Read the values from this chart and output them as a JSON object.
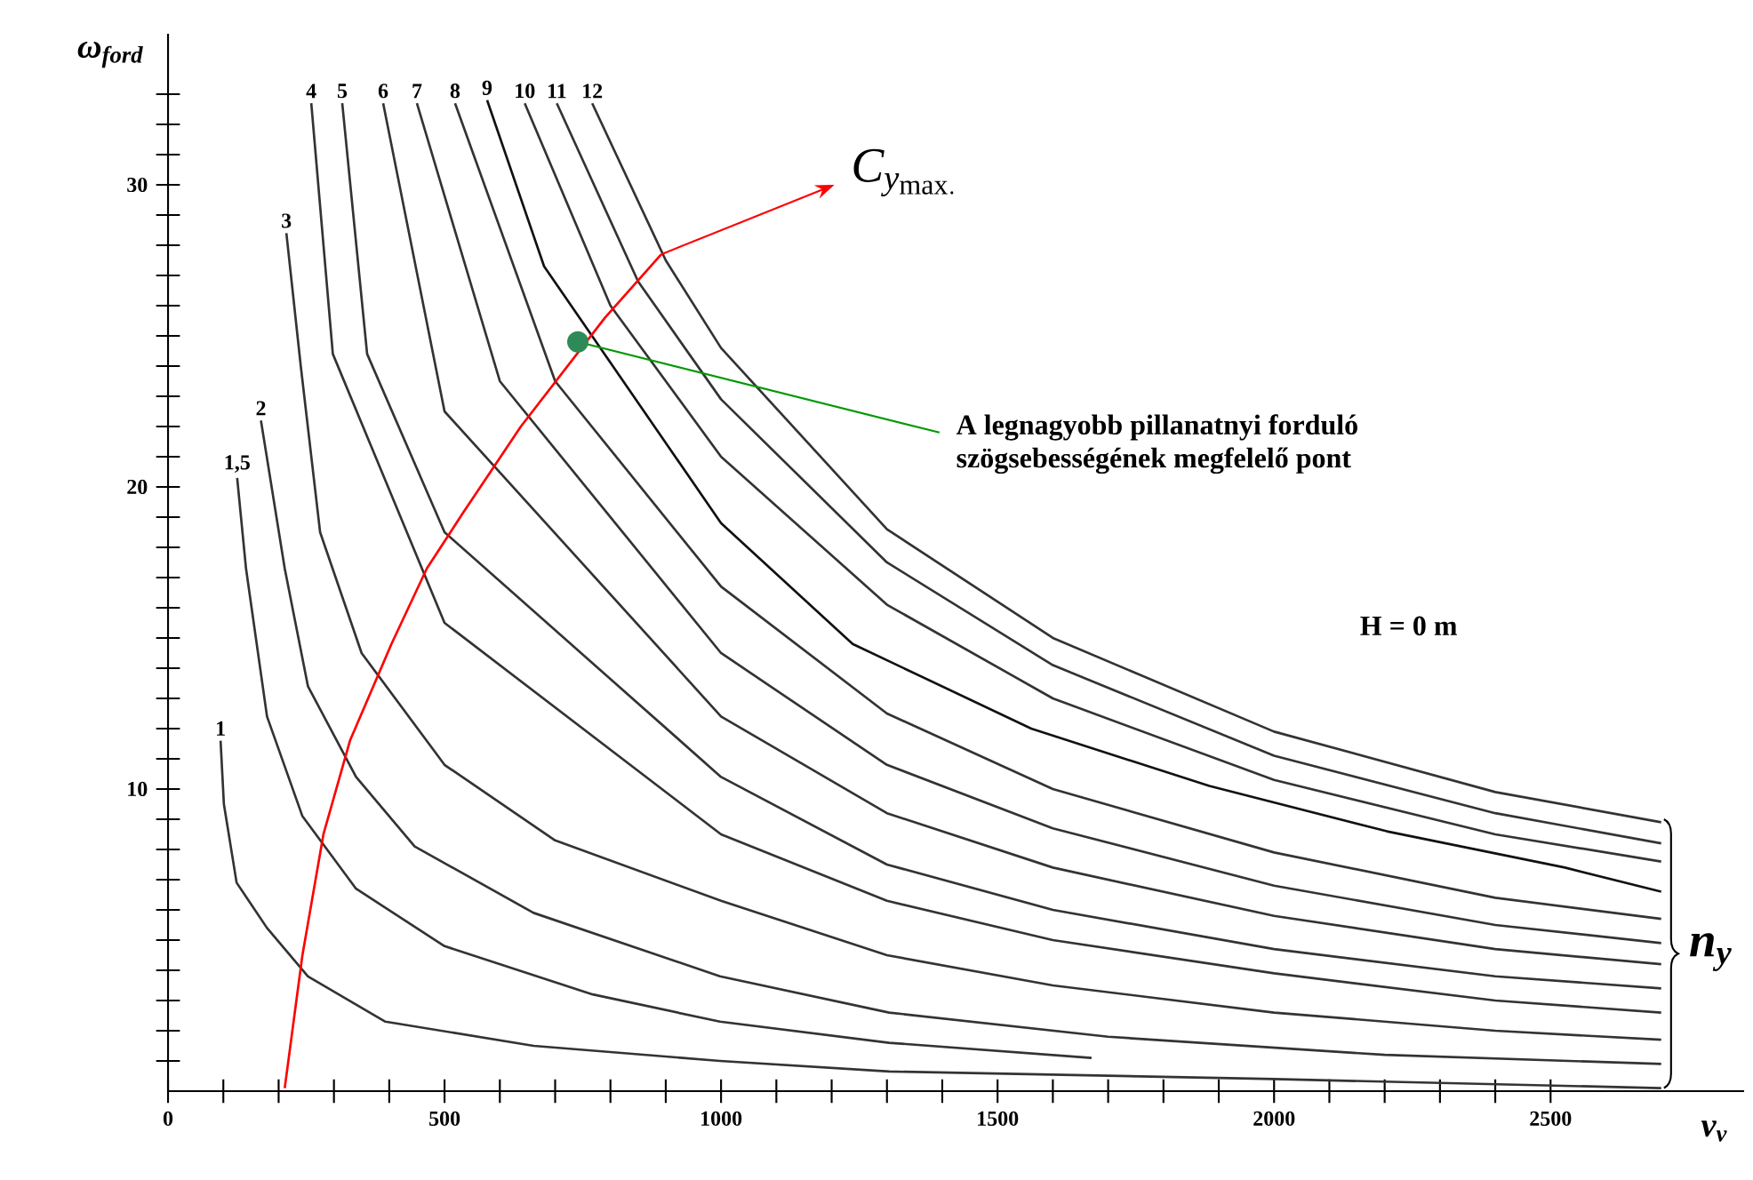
{
  "chart_data": {
    "type": "line",
    "xlabel": "v$_{v}$",
    "ylabel": "ω$_{ford}$",
    "xlim": [
      0,
      2850
    ],
    "ylim": [
      0,
      35
    ],
    "xticks": [
      0,
      {
        "value": 100,
        "label": null
      },
      {
        "value": 200,
        "label": null
      },
      {
        "value": 300,
        "label": null
      },
      {
        "value": 400,
        "label": null
      },
      500,
      {
        "value": 600,
        "label": null
      },
      {
        "value": 700,
        "label": null
      },
      {
        "value": 800,
        "label": null
      },
      {
        "value": 900,
        "label": null
      },
      1000,
      {
        "value": 1100,
        "label": null
      },
      {
        "value": 1200,
        "label": null
      },
      {
        "value": 1300,
        "label": null
      },
      {
        "value": 1400,
        "label": null
      },
      1500,
      {
        "value": 1600,
        "label": null
      },
      {
        "value": 1700,
        "label": null
      },
      {
        "value": 1800,
        "label": null
      },
      {
        "value": 1900,
        "label": null
      },
      2000,
      {
        "value": 2100,
        "label": null
      },
      {
        "value": 2200,
        "label": null
      },
      {
        "value": 2300,
        "label": null
      },
      {
        "value": 2400,
        "label": null
      },
      2500
    ],
    "yticks": [
      {
        "value": 1,
        "label": null
      },
      {
        "value": 2,
        "label": null
      },
      {
        "value": 3,
        "label": null
      },
      {
        "value": 4,
        "label": null
      },
      {
        "value": 5,
        "label": null
      },
      {
        "value": 6,
        "label": null
      },
      {
        "value": 7,
        "label": null
      },
      {
        "value": 8,
        "label": null
      },
      {
        "value": 9,
        "label": null
      },
      10,
      {
        "value": 11,
        "label": null
      },
      {
        "value": 12,
        "label": null
      },
      {
        "value": 13,
        "label": null
      },
      {
        "value": 14,
        "label": null
      },
      {
        "value": 15,
        "label": null
      },
      {
        "value": 16,
        "label": null
      },
      {
        "value": 17,
        "label": null
      },
      {
        "value": 18,
        "label": null
      },
      {
        "value": 19,
        "label": null
      },
      20,
      {
        "value": 21,
        "label": null
      },
      {
        "value": 22,
        "label": null
      },
      {
        "value": 23,
        "label": null
      },
      {
        "value": 24,
        "label": null
      },
      {
        "value": 25,
        "label": null
      },
      {
        "value": 26,
        "label": null
      },
      {
        "value": 27,
        "label": null
      },
      {
        "value": 28,
        "label": null
      },
      {
        "value": 29,
        "label": null
      },
      30,
      {
        "value": 31,
        "label": null
      },
      {
        "value": 32,
        "label": null
      },
      {
        "value": 33,
        "label": null
      }
    ],
    "grid": false,
    "marker": "none",
    "line_style": "solid",
    "series": [
      {
        "name": "1",
        "color": "#333333",
        "x": [
          95,
          101,
          124,
          179,
          253,
          393,
          661,
          998,
          1304,
          2000,
          2700
        ],
        "values": [
          11.6,
          9.5,
          6.9,
          5.4,
          3.8,
          2.3,
          1.5,
          1.0,
          0.65,
          0.4,
          0.1
        ]
      },
      {
        "name": "1,5",
        "color": "#333333",
        "x": [
          125,
          141,
          179,
          243,
          340,
          500,
          768,
          998,
          1304,
          1670
        ],
        "values": [
          20.3,
          17.3,
          12.4,
          9.1,
          6.7,
          4.8,
          3.2,
          2.3,
          1.6,
          1.1
        ]
      },
      {
        "name": "2",
        "color": "#333333",
        "x": [
          168,
          211,
          253,
          340,
          446,
          661,
          998,
          1304,
          1700,
          2200,
          2700
        ],
        "values": [
          22.2,
          17.3,
          13.4,
          10.4,
          8.1,
          5.9,
          3.8,
          2.6,
          1.8,
          1.2,
          0.9
        ]
      },
      {
        "name": "3",
        "color": "#333333",
        "x": [
          214,
          240,
          275,
          350,
          500,
          700,
          1000,
          1300,
          1600,
          2000,
          2400,
          2700
        ],
        "values": [
          28.4,
          24,
          18.5,
          14.5,
          10.8,
          8.3,
          6.3,
          4.5,
          3.5,
          2.6,
          2.0,
          1.7
        ]
      },
      {
        "name": "4",
        "color": "#333333",
        "x": [
          259,
          298,
          500,
          1000,
          1300,
          1600,
          2000,
          2400,
          2700
        ],
        "values": [
          32.7,
          24.4,
          15.5,
          8.5,
          6.3,
          5.0,
          3.9,
          3.0,
          2.6
        ]
      },
      {
        "name": "5",
        "color": "#333333",
        "x": [
          315,
          360,
          500,
          1000,
          1300,
          1600,
          2000,
          2400,
          2700
        ],
        "values": [
          32.7,
          24.4,
          18.5,
          10.4,
          7.5,
          6.0,
          4.7,
          3.8,
          3.4
        ]
      },
      {
        "name": "6",
        "color": "#333333",
        "x": [
          389,
          500,
          1000,
          1300,
          1600,
          2000,
          2400,
          2700
        ],
        "values": [
          32.7,
          22.5,
          12.4,
          9.2,
          7.4,
          5.8,
          4.7,
          4.2
        ]
      },
      {
        "name": "7",
        "color": "#333333",
        "x": [
          450,
          600,
          1000,
          1300,
          1600,
          2000,
          2400,
          2700
        ],
        "values": [
          32.7,
          23.5,
          14.5,
          10.8,
          8.7,
          6.8,
          5.5,
          4.9
        ]
      },
      {
        "name": "8",
        "color": "#333333",
        "x": [
          519,
          700,
          1000,
          1300,
          1600,
          2000,
          2400,
          2700
        ],
        "values": [
          32.7,
          23.5,
          16.7,
          12.5,
          10.0,
          7.9,
          6.4,
          5.7
        ]
      },
      {
        "name": "9",
        "color": "#111111",
        "x": [
          577,
          680,
          1000,
          1238,
          1561,
          1883,
          2204,
          2526,
          2700
        ],
        "values": [
          32.8,
          27.3,
          18.8,
          14.8,
          12.0,
          10.1,
          8.6,
          7.4,
          6.6
        ]
      },
      {
        "name": "10",
        "color": "#333333",
        "x": [
          645,
          800,
          1000,
          1300,
          1600,
          2000,
          2400,
          2700
        ],
        "values": [
          32.7,
          26.0,
          21.0,
          16.1,
          13.0,
          10.3,
          8.5,
          7.6
        ]
      },
      {
        "name": "11",
        "color": "#333333",
        "x": [
          703,
          850,
          1000,
          1300,
          1600,
          2000,
          2400,
          2700
        ],
        "values": [
          32.7,
          26.8,
          22.9,
          17.5,
          14.1,
          11.1,
          9.2,
          8.2
        ]
      },
      {
        "name": "12",
        "color": "#333333",
        "x": [
          767,
          900,
          1000,
          1300,
          1600,
          2000,
          2400,
          2700
        ],
        "values": [
          32.7,
          27.5,
          24.6,
          18.6,
          15.0,
          11.9,
          9.9,
          8.9
        ]
      },
      {
        "color": "#ff0000",
        "x": [
          211,
          243,
          281,
          329,
          404,
          468,
          532,
          638,
          790,
          892
        ],
        "values": [
          0.1,
          4.5,
          8.5,
          11.6,
          14.8,
          17.3,
          19.1,
          22.0,
          25.6,
          27.7
        ]
      },
      {
        "type": "scatter",
        "marker": "circle",
        "color": "#2e8b57",
        "x": [
          741
        ],
        "values": [
          24.8
        ]
      }
    ],
    "annotations": [
      {
        "text": "C_{y_{\\mathrm{max.}}}",
        "x": 892,
        "y": 27.7
      },
      {
        "text": "A legnagyobb pillanatnyi forduló szögsebességének megfelelő pont",
        "x": 741,
        "y": 24.8
      },
      "H = 0 m",
      "n$_{y}$"
    ]
  }
}
